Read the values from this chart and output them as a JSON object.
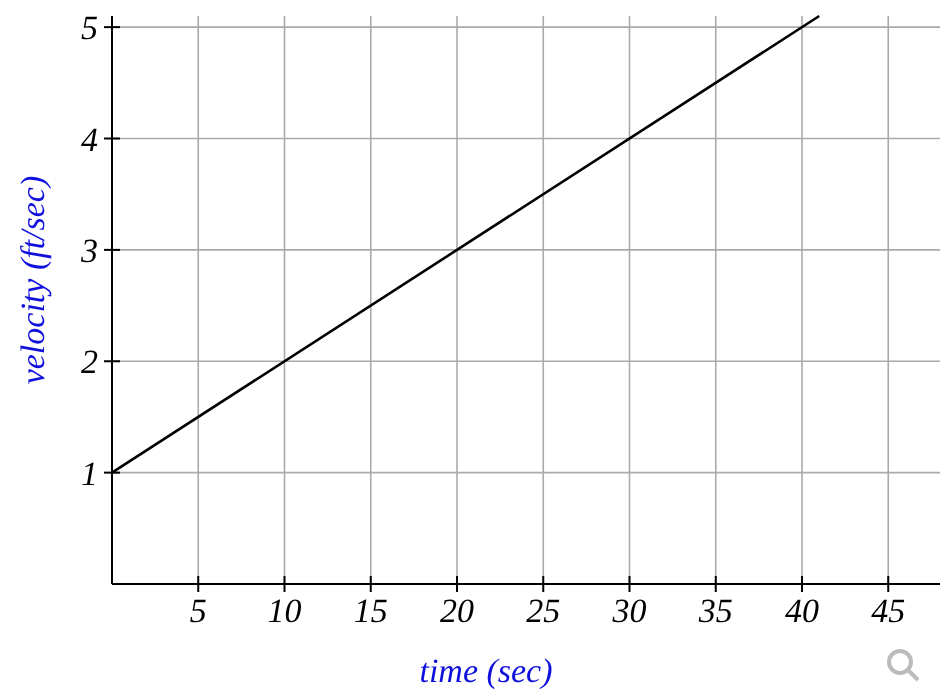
{
  "chart_data": {
    "type": "line",
    "xlabel": "time (sec)",
    "ylabel": "velocity (ft/sec)",
    "x": [
      0,
      41
    ],
    "series": [
      {
        "color": "#000000",
        "values": [
          1,
          5.1
        ]
      }
    ],
    "xlim": [
      0,
      48
    ],
    "ylim": [
      0,
      5.1
    ],
    "xticks": [
      5,
      10,
      15,
      20,
      25,
      30,
      35,
      40,
      45
    ],
    "yticks": [
      1,
      2,
      3,
      4,
      5
    ],
    "grid": true
  }
}
